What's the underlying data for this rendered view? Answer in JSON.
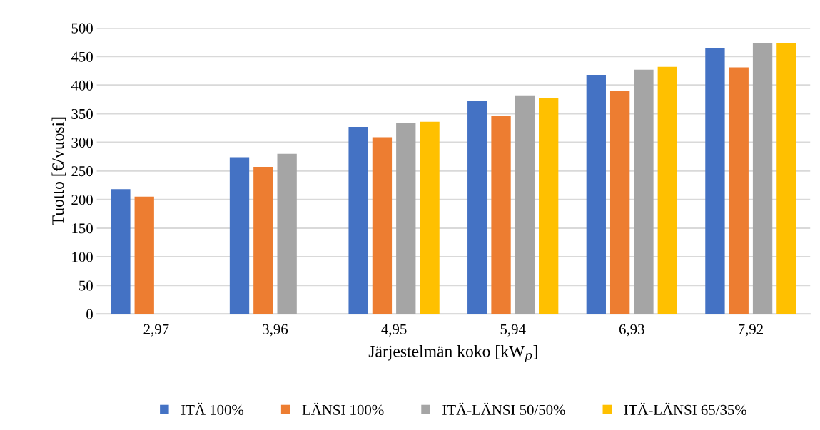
{
  "chart_data": {
    "type": "bar",
    "xlabel": "Järjestelmän koko [kW$_{p}$]",
    "ylabel": "Tuotto [€/vuosi]",
    "categories": [
      "2,97",
      "3,96",
      "4,95",
      "5,94",
      "6,93",
      "7,92"
    ],
    "series": [
      {
        "name": "ITÄ 100%",
        "color": "#4472c4",
        "values": [
          218,
          274,
          327,
          372,
          418,
          465
        ]
      },
      {
        "name": "LÄNSI 100%",
        "color": "#ed7d31",
        "values": [
          205,
          257,
          309,
          347,
          390,
          431
        ]
      },
      {
        "name": "ITÄ-LÄNSI 50/50%",
        "color": "#a5a5a5",
        "values": [
          null,
          280,
          334,
          382,
          427,
          473
        ]
      },
      {
        "name": "ITÄ-LÄNSI 65/35%",
        "color": "#ffc000",
        "values": [
          null,
          null,
          336,
          377,
          432,
          473
        ]
      }
    ],
    "ylim": [
      0,
      500
    ],
    "yticks": [
      0,
      50,
      100,
      150,
      200,
      250,
      300,
      350,
      400,
      450,
      500
    ],
    "grid": "y",
    "legend": "bottom"
  }
}
